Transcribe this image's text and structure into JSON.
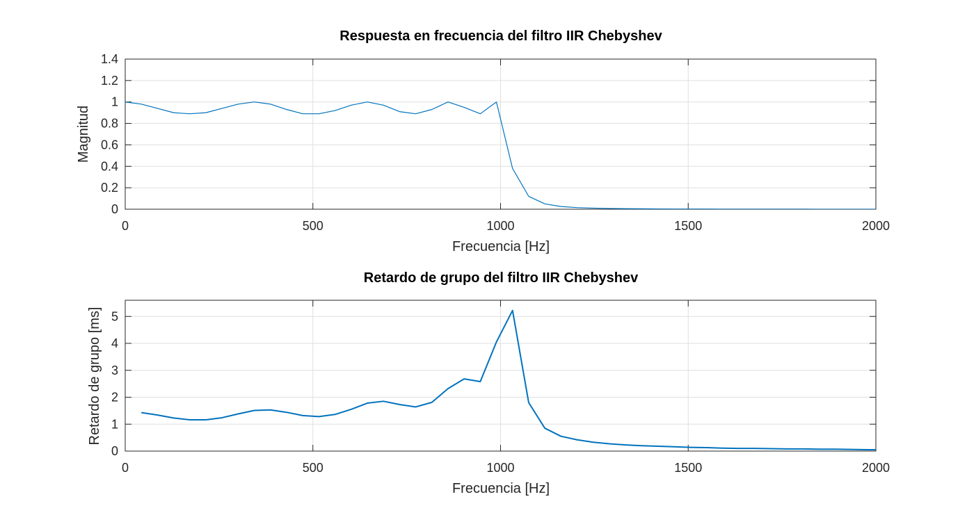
{
  "chart_data": [
    {
      "type": "line",
      "title": "Respuesta en frecuencia del filtro IIR Chebyshev",
      "xlabel": "Frecuencia [Hz]",
      "ylabel": "Magnitud",
      "xlim": [
        0,
        2000
      ],
      "ylim": [
        0,
        1.4
      ],
      "xticks": [
        0,
        500,
        1000,
        1500,
        2000
      ],
      "xtick_labels": [
        "0",
        "500",
        "1000",
        "1500",
        "2000"
      ],
      "yticks": [
        0,
        0.2,
        0.4,
        0.6,
        0.8,
        1,
        1.2,
        1.4
      ],
      "ytick_labels": [
        "0",
        "0.2",
        "0.4",
        "0.6",
        "0.8",
        "1",
        "1.2",
        "1.4"
      ],
      "grid": true,
      "line_color": "#0072bd",
      "series": [
        {
          "x": [
            0,
            43,
            86,
            129,
            172,
            215,
            258,
            301,
            344,
            387,
            430,
            473,
            516,
            559,
            602,
            645,
            688,
            731,
            774,
            817,
            860,
            903,
            946,
            989,
            1032,
            1075,
            1118,
            1161,
            1204,
            1247,
            1290,
            1333,
            1376,
            1419,
            1462,
            1505,
            1548,
            1591,
            1634,
            1677,
            1720,
            1763,
            1806,
            1849,
            1892,
            1935,
            1978,
            2000
          ],
          "y": [
            1.0,
            0.98,
            0.94,
            0.9,
            0.89,
            0.9,
            0.94,
            0.98,
            1.0,
            0.98,
            0.93,
            0.89,
            0.89,
            0.92,
            0.97,
            1.0,
            0.97,
            0.91,
            0.89,
            0.93,
            1.0,
            0.95,
            0.89,
            1.0,
            0.38,
            0.12,
            0.05,
            0.025,
            0.015,
            0.01,
            0.007,
            0.005,
            0.004,
            0.003,
            0.002,
            0.002,
            0.0015,
            0.001,
            0.001,
            0.001,
            0.001,
            0.0008,
            0.0006,
            0.0005,
            0.0004,
            0.0003,
            0.0002,
            0.0002
          ]
        }
      ]
    },
    {
      "type": "line",
      "title": "Retardo de grupo del filtro IIR Chebyshev",
      "xlabel": "Frecuencia [Hz]",
      "ylabel": "Retardo de grupo [ms]",
      "xlim": [
        0,
        2000
      ],
      "ylim": [
        0,
        5.6
      ],
      "xticks": [
        0,
        500,
        1000,
        1500,
        2000
      ],
      "xtick_labels": [
        "0",
        "500",
        "1000",
        "1500",
        "2000"
      ],
      "yticks": [
        0,
        1,
        2,
        3,
        4,
        5
      ],
      "ytick_labels": [
        "0",
        "1",
        "2",
        "3",
        "4",
        "5"
      ],
      "grid": true,
      "line_color": "#0072bd",
      "series": [
        {
          "x": [
            43,
            86,
            129,
            172,
            215,
            258,
            301,
            344,
            387,
            430,
            473,
            516,
            559,
            602,
            645,
            688,
            731,
            774,
            817,
            860,
            903,
            946,
            989,
            1032,
            1075,
            1118,
            1161,
            1204,
            1247,
            1290,
            1333,
            1376,
            1419,
            1462,
            1505,
            1548,
            1591,
            1634,
            1677,
            1720,
            1763,
            1806,
            1849,
            1892,
            1935,
            1978,
            2000
          ],
          "y": [
            1.43,
            1.34,
            1.23,
            1.16,
            1.16,
            1.24,
            1.38,
            1.51,
            1.53,
            1.44,
            1.32,
            1.28,
            1.36,
            1.55,
            1.78,
            1.85,
            1.73,
            1.64,
            1.81,
            2.32,
            2.68,
            2.58,
            4.05,
            5.22,
            1.8,
            0.85,
            0.55,
            0.42,
            0.33,
            0.27,
            0.23,
            0.2,
            0.18,
            0.16,
            0.14,
            0.13,
            0.11,
            0.1,
            0.1,
            0.09,
            0.08,
            0.08,
            0.07,
            0.07,
            0.06,
            0.05,
            0.05
          ]
        }
      ]
    }
  ]
}
